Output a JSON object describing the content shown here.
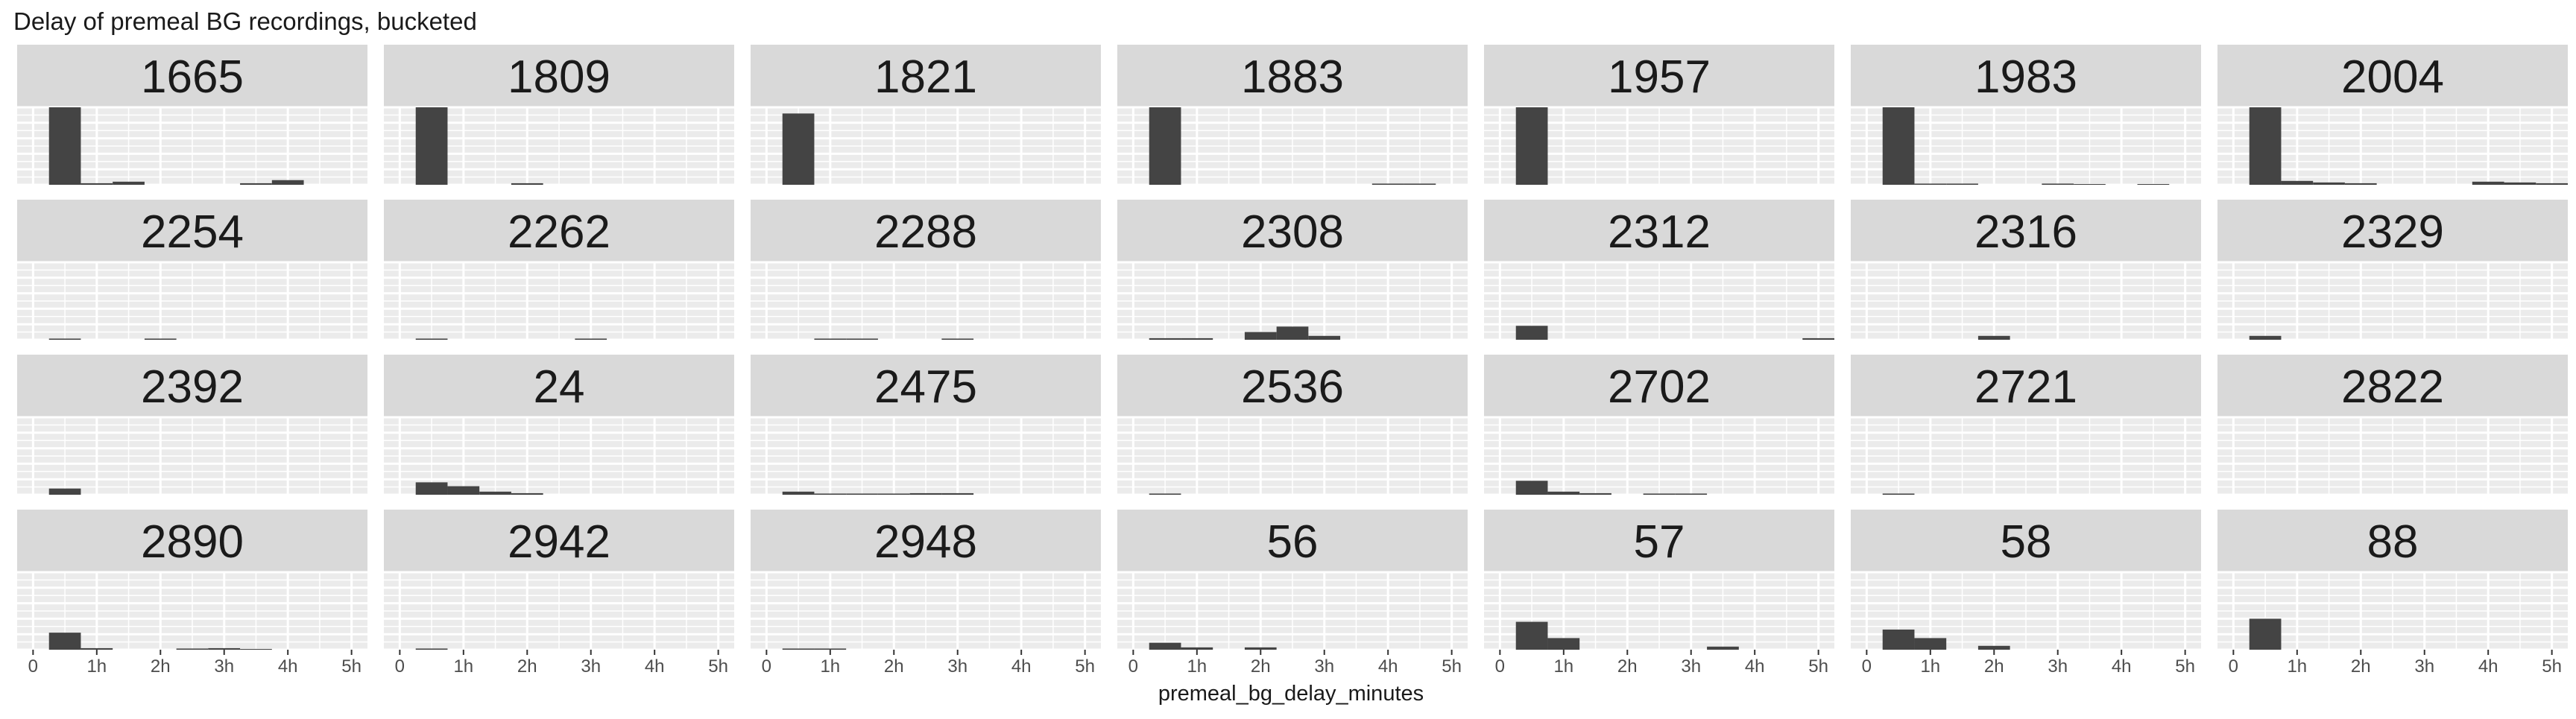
{
  "chart_data": {
    "type": "bar",
    "title": "Delay of premeal BG recordings, bucketed",
    "xlabel": "premeal_bg_delay_minutes",
    "ylabel": "",
    "x_ticks": [
      {
        "value": 0,
        "label": "0"
      },
      {
        "value": 60,
        "label": "1h"
      },
      {
        "value": 120,
        "label": "2h"
      },
      {
        "value": 180,
        "label": "3h"
      },
      {
        "value": 240,
        "label": "4h"
      },
      {
        "value": 300,
        "label": "5h"
      }
    ],
    "xlim": [
      -15,
      315
    ],
    "ylim": [
      0,
      100
    ],
    "bin_width": 30,
    "bin_starts": [
      15,
      45,
      75,
      105,
      135,
      165,
      195,
      225,
      255,
      285
    ],
    "grid": true,
    "layout": {
      "rows": 4,
      "cols": 7
    },
    "panels": [
      {
        "label": "1665",
        "values": [
          100,
          2,
          4,
          0,
          0,
          0,
          2,
          6,
          0,
          0
        ]
      },
      {
        "label": "1809",
        "values": [
          100,
          0,
          0,
          2,
          0,
          0,
          0,
          0,
          0,
          0
        ]
      },
      {
        "label": "1821",
        "values": [
          92,
          0,
          0,
          0,
          0,
          0,
          0,
          0,
          0,
          0
        ]
      },
      {
        "label": "1883",
        "values": [
          100,
          0,
          0,
          0,
          0,
          0,
          0,
          1.5,
          1.5,
          0
        ]
      },
      {
        "label": "1957",
        "values": [
          100,
          0,
          0,
          0,
          0,
          0,
          0,
          0,
          0,
          0
        ]
      },
      {
        "label": "1983",
        "values": [
          100,
          1.5,
          1.5,
          0,
          0,
          1.5,
          1,
          0,
          1,
          0
        ]
      },
      {
        "label": "2004",
        "values": [
          100,
          5,
          3,
          2,
          0,
          0,
          0,
          4,
          3,
          2
        ]
      },
      {
        "label": "2254",
        "values": [
          1.5,
          0,
          0,
          1.5,
          0,
          0,
          0,
          0,
          0,
          0
        ]
      },
      {
        "label": "2262",
        "values": [
          1.5,
          0,
          0,
          0,
          0,
          1.5,
          0,
          0,
          0,
          0
        ]
      },
      {
        "label": "2288",
        "values": [
          0,
          1.5,
          1.5,
          0,
          0,
          1.5,
          0,
          0,
          0,
          0
        ]
      },
      {
        "label": "2308",
        "values": [
          2,
          2,
          0,
          10,
          17,
          5,
          0,
          0,
          0,
          0
        ]
      },
      {
        "label": "2312",
        "values": [
          18,
          0,
          0,
          0,
          0,
          0,
          0,
          0,
          0,
          2
        ]
      },
      {
        "label": "2316",
        "values": [
          0,
          0,
          0,
          5,
          0,
          0,
          0,
          0,
          0,
          0
        ]
      },
      {
        "label": "2329",
        "values": [
          5,
          0,
          0,
          0,
          0,
          0,
          0,
          0,
          0,
          0
        ]
      },
      {
        "label": "2392",
        "values": [
          8,
          0,
          0,
          0,
          0,
          0,
          0,
          0,
          0,
          0
        ]
      },
      {
        "label": "24",
        "values": [
          16,
          11,
          4,
          2,
          0,
          0,
          0,
          0,
          0,
          0
        ]
      },
      {
        "label": "2475",
        "values": [
          4,
          1.5,
          1.5,
          1.5,
          2,
          2,
          0,
          0,
          0,
          0
        ]
      },
      {
        "label": "2536",
        "values": [
          1.5,
          0,
          0,
          0,
          0,
          0,
          0,
          0,
          0,
          0
        ]
      },
      {
        "label": "2702",
        "values": [
          18,
          4,
          2,
          0,
          1.5,
          1.5,
          0,
          0,
          0,
          0
        ]
      },
      {
        "label": "2721",
        "values": [
          1.5,
          0,
          0,
          0,
          0,
          0,
          0,
          0,
          0,
          0
        ]
      },
      {
        "label": "2822",
        "values": [
          0,
          0,
          0,
          0,
          0,
          0,
          0,
          0,
          0,
          0
        ]
      },
      {
        "label": "2890",
        "values": [
          22,
          2,
          0,
          0,
          1.5,
          2,
          1,
          0,
          0,
          0
        ]
      },
      {
        "label": "2942",
        "values": [
          1.5,
          0,
          0,
          0,
          0,
          0,
          0,
          0,
          0,
          0
        ]
      },
      {
        "label": "2948",
        "values": [
          1.5,
          1.5,
          0,
          0,
          0,
          0,
          0,
          0,
          0,
          0
        ]
      },
      {
        "label": "56",
        "values": [
          9,
          3,
          0,
          3,
          0,
          0,
          0,
          0,
          0,
          0
        ]
      },
      {
        "label": "57",
        "values": [
          36,
          15,
          0,
          0,
          0,
          0,
          4,
          0,
          0,
          0
        ]
      },
      {
        "label": "58",
        "values": [
          26,
          15,
          0,
          5,
          0,
          0,
          0,
          0,
          0,
          0
        ]
      },
      {
        "label": "88",
        "values": [
          40,
          0,
          0,
          0,
          0,
          0,
          0,
          0,
          0,
          0
        ]
      }
    ]
  },
  "colors": {
    "panel_bg": "#ebebeb",
    "strip_bg": "#d9d9d9",
    "grid": "#ffffff",
    "bar": "#444444",
    "text": "#1a1a1a",
    "tick": "#4d4d4d"
  }
}
